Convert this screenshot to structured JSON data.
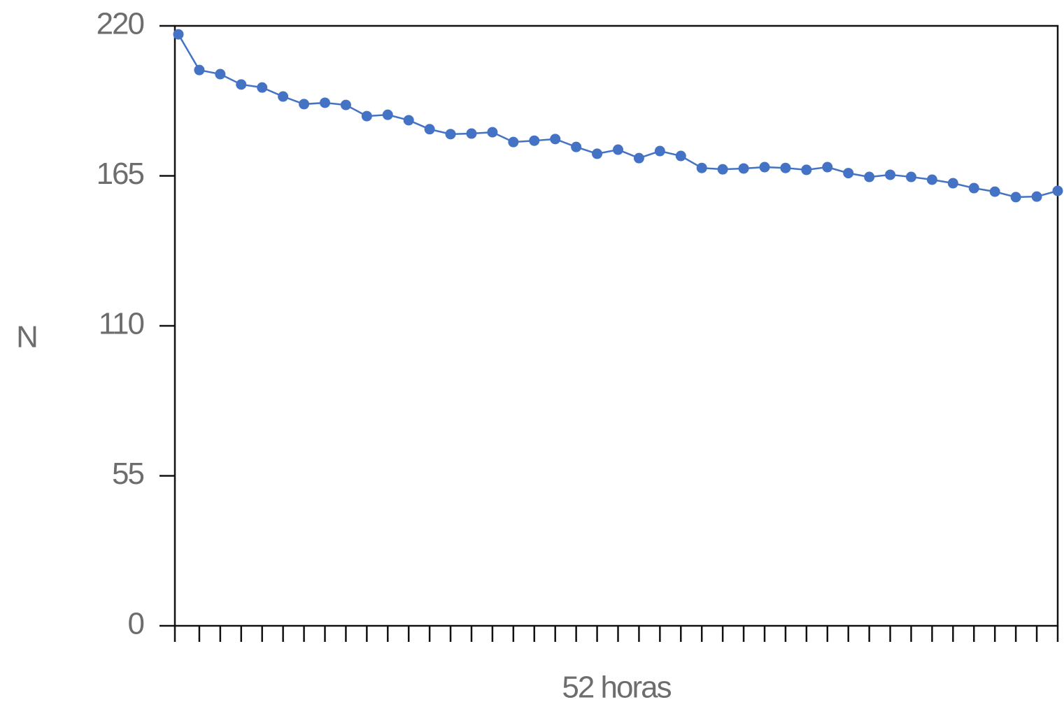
{
  "chart_data": {
    "type": "line",
    "x_label": "52 horas",
    "y_label": "N",
    "categories": [
      null,
      null,
      null,
      null,
      null,
      null,
      null,
      null,
      null,
      null,
      null,
      null,
      null,
      null,
      null,
      null,
      null,
      null,
      null,
      null,
      null,
      null,
      null,
      null,
      null,
      null,
      null,
      null,
      null,
      null,
      null,
      null,
      null,
      null,
      null,
      null,
      null,
      null,
      null,
      null,
      null,
      null,
      null
    ],
    "series": [
      {
        "color": "#4472c4",
        "values": [
          216.9,
          203.8,
          202.3,
          198.5,
          197.4,
          194.1,
          191.3,
          191.8,
          191.0,
          186.9,
          187.4,
          185.4,
          182.1,
          180.3,
          180.5,
          181.0,
          177.4,
          177.9,
          178.5,
          175.6,
          173.1,
          174.6,
          171.5,
          174.1,
          172.3,
          167.9,
          167.4,
          167.7,
          168.2,
          167.9,
          167.2,
          168.2,
          166.0,
          164.6,
          165.4,
          164.6,
          163.6,
          162.3,
          160.5,
          159.2,
          157.2,
          157.4,
          159.5
        ]
      }
    ],
    "ylim": [
      0,
      220
    ],
    "yticks": [
      0,
      55,
      110,
      165,
      220
    ],
    "grid": false
  }
}
